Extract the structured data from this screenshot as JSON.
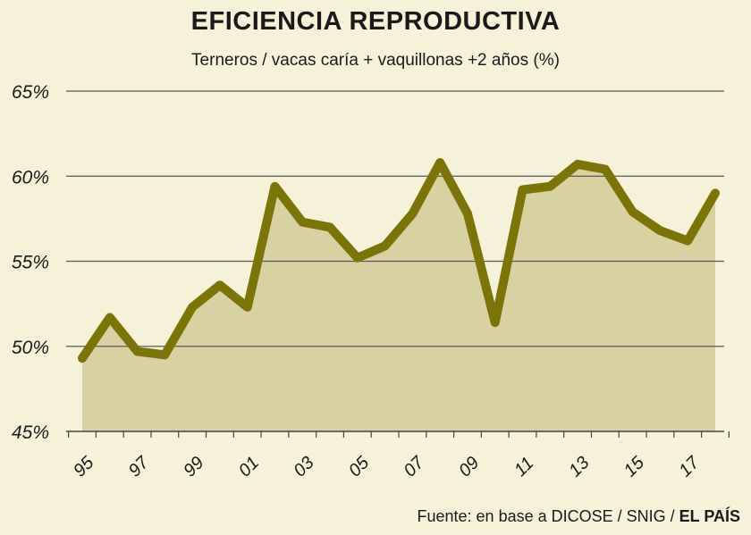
{
  "chart_data": {
    "type": "area",
    "title": "EFICIENCIA REPRODUCTIVA",
    "subtitle": "Terneros / vacas caría + vaquillonas +2 años (%)",
    "ylim": [
      45,
      65
    ],
    "yticks": [
      45,
      50,
      55,
      60,
      65
    ],
    "ytick_labels": [
      "45%",
      "50%",
      "55%",
      "60%",
      "65%"
    ],
    "xlim": [
      1995,
      2018
    ],
    "xticks": [
      1995,
      1997,
      1999,
      2001,
      2003,
      2005,
      2007,
      2009,
      2011,
      2013,
      2015,
      2017
    ],
    "xtick_labels": [
      "95",
      "97",
      "99",
      "01",
      "03",
      "05",
      "07",
      "09",
      "11",
      "13",
      "15",
      "17"
    ],
    "x": [
      1995,
      1996,
      1997,
      1998,
      1999,
      2000,
      2001,
      2002,
      2003,
      2004,
      2005,
      2006,
      2007,
      2008,
      2009,
      2010,
      2011,
      2012,
      2013,
      2014,
      2015,
      2016,
      2017,
      2018
    ],
    "y": [
      49.3,
      51.7,
      49.7,
      49.5,
      52.3,
      53.6,
      52.3,
      59.4,
      57.3,
      57.0,
      55.2,
      55.9,
      57.8,
      60.8,
      57.8,
      51.4,
      59.2,
      59.4,
      60.7,
      60.4,
      57.9,
      56.8,
      56.2,
      59.0
    ],
    "grid": true,
    "line_color": "#7a7409",
    "fill_color": "#d8d2a3"
  },
  "source": {
    "prefix": "Fuente: en base a DICOSE / SNIG / ",
    "brand": "EL PAÍS"
  }
}
